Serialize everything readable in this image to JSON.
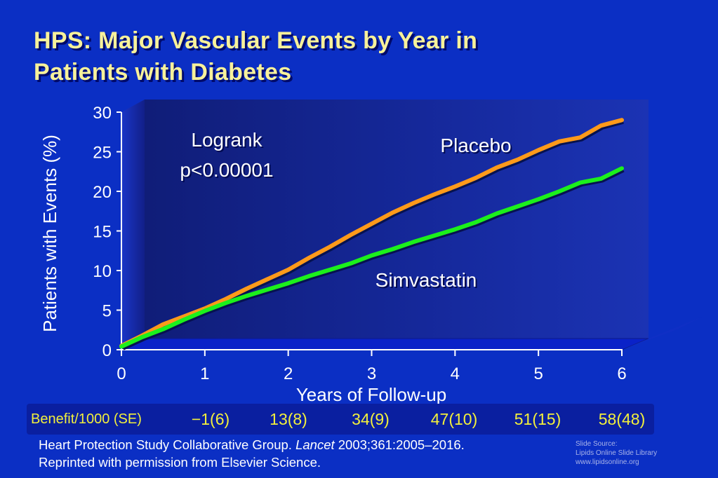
{
  "title_line1": "HPS:  Major Vascular Events by Year in",
  "title_line2": "Patients with Diabetes",
  "chart_data": {
    "type": "line",
    "xlabel": "Years of Follow-up",
    "ylabel": "Patients with Events (%)",
    "xlim": [
      0,
      6
    ],
    "ylim": [
      0,
      30
    ],
    "x_ticks": [
      "0",
      "1",
      "2",
      "3",
      "4",
      "5",
      "6"
    ],
    "y_ticks": [
      "0",
      "5",
      "10",
      "15",
      "20",
      "25",
      "30"
    ],
    "series": [
      {
        "name": "Placebo",
        "color": "#ff9a1a",
        "x": [
          0,
          0.25,
          0.5,
          0.75,
          1,
          1.25,
          1.5,
          1.75,
          2,
          2.25,
          2.5,
          2.75,
          3,
          3.25,
          3.5,
          3.75,
          4,
          4.25,
          4.5,
          4.75,
          5,
          5.25,
          5.5,
          5.75,
          6
        ],
        "values": [
          0.5,
          1.8,
          3.2,
          4.2,
          5.2,
          6.4,
          7.7,
          8.9,
          10.1,
          11.6,
          13.0,
          14.5,
          15.9,
          17.3,
          18.5,
          19.6,
          20.6,
          21.7,
          23.0,
          24.0,
          25.2,
          26.3,
          26.8,
          28.3,
          29.0
        ]
      },
      {
        "name": "Simvastatin",
        "color": "#1cf01c",
        "x": [
          0,
          0.25,
          0.5,
          0.75,
          1,
          1.25,
          1.5,
          1.75,
          2,
          2.25,
          2.5,
          2.75,
          3,
          3.25,
          3.5,
          3.75,
          4,
          4.25,
          4.5,
          4.75,
          5,
          5.25,
          5.5,
          5.75,
          6
        ],
        "values": [
          0.4,
          1.6,
          2.6,
          3.8,
          4.9,
          5.9,
          6.8,
          7.6,
          8.4,
          9.3,
          10.1,
          10.9,
          11.9,
          12.7,
          13.6,
          14.4,
          15.2,
          16.1,
          17.2,
          18.1,
          19.0,
          20.0,
          21.1,
          21.6,
          22.9
        ]
      }
    ],
    "annotations": {
      "logrank_line1": "Logrank",
      "logrank_line2": "p<0.00001",
      "placebo_label": "Placebo",
      "simvastatin_label": "Simvastatin"
    },
    "grid": false,
    "legend": "none"
  },
  "benefit": {
    "label": "Benefit/1000 (SE)",
    "values": [
      "−1(6)",
      "13(8)",
      "34(9)",
      "47(10)",
      "51(15)",
      "58(48)"
    ]
  },
  "citation": {
    "line1_a": "Heart Protection Study Collaborative Group. ",
    "line1_journal": "Lancet",
    "line1_b": " 2003;361:2005–2016.",
    "line2": "Reprinted with permission from Elsevier Science."
  },
  "source": {
    "line1": "Slide Source:",
    "line2": "Lipids Online Slide Library",
    "line3": "www.lipidsonline.org"
  },
  "colors": {
    "background": "#0b2fc4",
    "title": "#f7f19a",
    "benefit_text": "#f2ef3c",
    "placebo": "#ff9a1a",
    "simvastatin": "#1cf01c"
  }
}
